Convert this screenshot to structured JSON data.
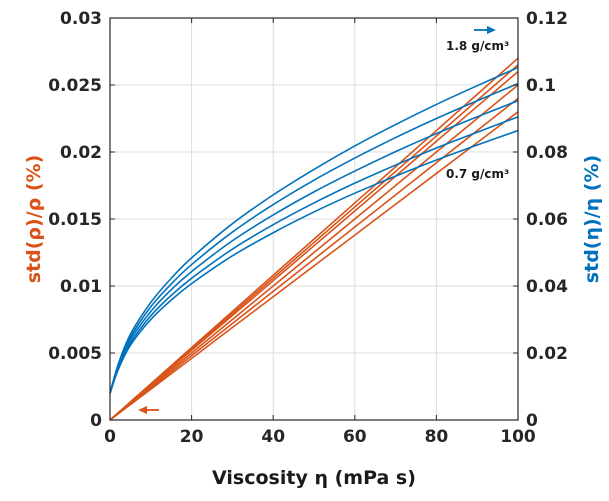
{
  "chart_data": {
    "type": "line",
    "title": "",
    "xlabel": "Viscosity η (mPa s)",
    "ylabel_left": "std(ρ)/ρ (%)",
    "ylabel_right": "std(η)/η (%)",
    "xlim": [
      0,
      100
    ],
    "ylim_left": [
      0,
      0.03
    ],
    "ylim_right": [
      0,
      0.12
    ],
    "x_ticks": [
      "0",
      "20",
      "40",
      "60",
      "80",
      "100"
    ],
    "y_ticks_left": [
      "0",
      "0.005",
      "0.01",
      "0.015",
      "0.02",
      "0.025",
      "0.03"
    ],
    "y_ticks_right": [
      "0",
      "0.02",
      "0.04",
      "0.06",
      "0.08",
      "0.1",
      "0.12"
    ],
    "grid": true,
    "colors": {
      "left_axis": "#D95319",
      "right_axis": "#0072BD"
    },
    "x": [
      0,
      2,
      5,
      10,
      15,
      20,
      30,
      40,
      50,
      60,
      70,
      80,
      90,
      100
    ],
    "series_left": [
      {
        "values": [
          0,
          0.00054,
          0.00135,
          0.0027,
          0.00405,
          0.0054,
          0.0081,
          0.0108,
          0.0135,
          0.0162,
          0.0189,
          0.0216,
          0.0243,
          0.027
        ]
      },
      {
        "values": [
          0,
          0.00053,
          0.00133,
          0.00265,
          0.00398,
          0.0053,
          0.00795,
          0.0106,
          0.01325,
          0.0159,
          0.01855,
          0.0212,
          0.02385,
          0.0265
        ]
      },
      {
        "values": [
          0,
          0.00052,
          0.0013,
          0.0026,
          0.0039,
          0.0052,
          0.0078,
          0.0104,
          0.013,
          0.0156,
          0.0182,
          0.0208,
          0.0234,
          0.026
        ]
      },
      {
        "values": [
          0,
          0.0005,
          0.00125,
          0.0025,
          0.00375,
          0.005,
          0.0075,
          0.01,
          0.0125,
          0.015,
          0.0175,
          0.02,
          0.0225,
          0.025
        ]
      },
      {
        "values": [
          0,
          0.00048,
          0.0012,
          0.0024,
          0.0036,
          0.0048,
          0.0072,
          0.0096,
          0.012,
          0.0144,
          0.0168,
          0.0192,
          0.0216,
          0.024
        ]
      },
      {
        "values": [
          0,
          0.00046,
          0.00115,
          0.0023,
          0.00345,
          0.0046,
          0.0069,
          0.0092,
          0.0115,
          0.0138,
          0.0161,
          0.0184,
          0.0207,
          0.023
        ]
      }
    ],
    "series_right": [
      {
        "values": [
          0.008,
          0.0166,
          0.0256,
          0.0351,
          0.0423,
          0.0484,
          0.0586,
          0.0672,
          0.0748,
          0.0818,
          0.0882,
          0.0942,
          0.0998,
          0.1052
        ]
      },
      {
        "values": [
          0.008,
          0.0162,
          0.0247,
          0.0338,
          0.0406,
          0.0464,
          0.0561,
          0.0643,
          0.0716,
          0.0782,
          0.0843,
          0.09,
          0.0953,
          0.1004
        ]
      },
      {
        "values": [
          0.008,
          0.0158,
          0.0239,
          0.0324,
          0.0389,
          0.0443,
          0.0535,
          0.0612,
          0.0681,
          0.0743,
          0.0801,
          0.0855,
          0.0905,
          0.0953
        ]
      },
      {
        "values": [
          0.008,
          0.0154,
          0.023,
          0.0311,
          0.0372,
          0.0423,
          0.051,
          0.0583,
          0.0648,
          0.0707,
          0.0761,
          0.0812,
          0.0859,
          0.0905
        ]
      },
      {
        "values": [
          0.008,
          0.015,
          0.0223,
          0.03,
          0.0358,
          0.0407,
          0.049,
          0.0559,
          0.0621,
          0.0677,
          0.0728,
          0.0776,
          0.0821,
          0.0864
        ]
      }
    ],
    "annotations": {
      "top_density": "1.8 g/cm³",
      "bottom_density": "0.7 g/cm³"
    }
  }
}
